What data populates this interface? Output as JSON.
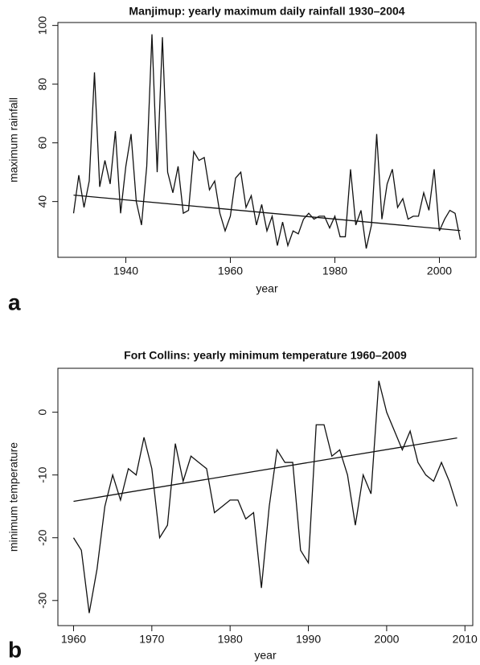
{
  "chart_data": [
    {
      "type": "line",
      "panel_label": "a",
      "title": "Manjimup: yearly maximum daily rainfall 1930–2004",
      "x_label": "year",
      "y_label": "maximum rainfall",
      "x": [
        1930,
        1931,
        1932,
        1933,
        1934,
        1935,
        1936,
        1937,
        1938,
        1939,
        1940,
        1941,
        1942,
        1943,
        1944,
        1945,
        1946,
        1947,
        1948,
        1949,
        1950,
        1951,
        1952,
        1953,
        1954,
        1955,
        1956,
        1957,
        1958,
        1959,
        1960,
        1961,
        1962,
        1963,
        1964,
        1965,
        1966,
        1967,
        1968,
        1969,
        1970,
        1971,
        1972,
        1973,
        1974,
        1975,
        1976,
        1977,
        1978,
        1979,
        1980,
        1981,
        1982,
        1983,
        1984,
        1985,
        1986,
        1987,
        1988,
        1989,
        1990,
        1991,
        1992,
        1993,
        1994,
        1995,
        1996,
        1997,
        1998,
        1999,
        2000,
        2001,
        2002,
        2003,
        2004
      ],
      "values": [
        36,
        49,
        38,
        47,
        84,
        45,
        54,
        46,
        64,
        36,
        52,
        63,
        40,
        32,
        52,
        97,
        50,
        96,
        50,
        43,
        52,
        36,
        37,
        57,
        54,
        55,
        44,
        47,
        36,
        30,
        35,
        48,
        50,
        38,
        42,
        32,
        39,
        30,
        35,
        25,
        33,
        25,
        30,
        29,
        34,
        36,
        34,
        35,
        35,
        31,
        35,
        28,
        28,
        51,
        32,
        37,
        24,
        32,
        63,
        34,
        46,
        51,
        38,
        41,
        34,
        35,
        35,
        43,
        37,
        51,
        30,
        34,
        37,
        36,
        27
      ],
      "color": "#111111",
      "trend": {
        "x": [
          1930,
          2004
        ],
        "values": [
          42.2,
          30.1
        ]
      },
      "xlim": [
        1927,
        2007
      ],
      "ylim": [
        21,
        101
      ],
      "xticks": [
        1940,
        1960,
        1980,
        2000
      ],
      "yticks": [
        40,
        60,
        80,
        100
      ]
    },
    {
      "type": "line",
      "panel_label": "b",
      "title": "Fort Collins: yearly minimum temperature 1960–2009",
      "x_label": "year",
      "y_label": "minimum temperature",
      "x": [
        1960,
        1961,
        1962,
        1963,
        1964,
        1965,
        1966,
        1967,
        1968,
        1969,
        1970,
        1971,
        1972,
        1973,
        1974,
        1975,
        1976,
        1977,
        1978,
        1979,
        1980,
        1981,
        1982,
        1983,
        1984,
        1985,
        1986,
        1987,
        1988,
        1989,
        1990,
        1991,
        1992,
        1993,
        1994,
        1995,
        1996,
        1997,
        1998,
        1999,
        2000,
        2001,
        2002,
        2003,
        2004,
        2005,
        2006,
        2007,
        2008,
        2009
      ],
      "values": [
        -20,
        -22,
        -32,
        -25,
        -15,
        -10,
        -14,
        -9,
        -10,
        -4,
        -9,
        -20,
        -18,
        -5,
        -11,
        -7,
        -8,
        -9,
        -16,
        -15,
        -14,
        -14,
        -17,
        -16,
        -28,
        -15,
        -6,
        -8,
        -8,
        -22,
        -24,
        -2,
        -2,
        -7,
        -6,
        -10,
        -18,
        -10,
        -13,
        5,
        0,
        -3,
        -6,
        -3,
        -8,
        -10,
        -11,
        -8,
        -11,
        -15
      ],
      "color": "#111111",
      "trend": {
        "x": [
          1960,
          2009
        ],
        "values": [
          -14.2,
          -4.1
        ]
      },
      "xlim": [
        1958,
        2011
      ],
      "ylim": [
        -34,
        7
      ],
      "xticks": [
        1960,
        1970,
        1980,
        1990,
        2000,
        2010
      ],
      "yticks": [
        -30,
        -20,
        -10,
        0
      ]
    }
  ]
}
